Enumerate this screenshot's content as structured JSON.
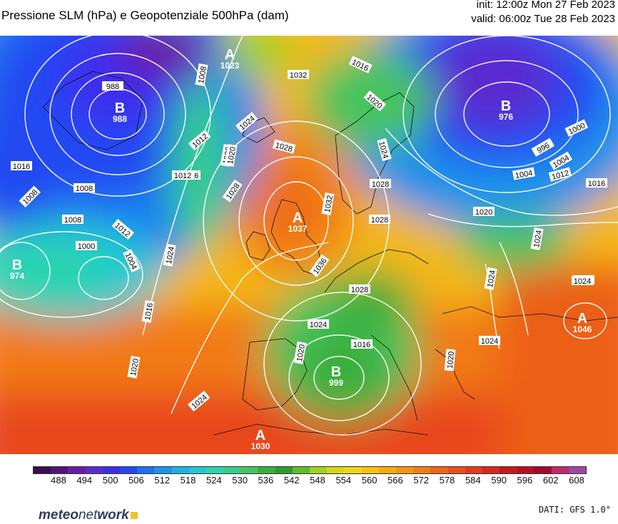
{
  "header": {
    "title": "Pressione SLM (hPa) e Geopotenziale 500hPa (dam)",
    "init": "init: 12:00z Mon 27 Feb 2023",
    "valid": "valid: 06:00z Tue 28 Feb 2023"
  },
  "isobar_labels": [
    "988",
    "1008",
    "1012",
    "1016",
    "1020",
    "1024",
    "1028",
    "1032",
    "1036",
    "1016",
    "1020",
    "1024",
    "1028",
    "1012",
    "1008",
    "1004",
    "1000",
    "996",
    "1004",
    "1012",
    "1016",
    "1020",
    "1024",
    "1028",
    "1024",
    "1024",
    "1032",
    "1016",
    "1008",
    "1012",
    "1008",
    "1000",
    "1004",
    "1016",
    "1020",
    "1024",
    "1028",
    "1024",
    "1020",
    "1016",
    "1020",
    "1024",
    "1024",
    "1024",
    "1020",
    "1028"
  ],
  "centers": [
    {
      "letter": "B",
      "value": "988"
    },
    {
      "letter": "A",
      "value": "1023"
    },
    {
      "letter": "B",
      "value": "976"
    },
    {
      "letter": "B",
      "value": "974"
    },
    {
      "letter": "A",
      "value": "1037"
    },
    {
      "letter": "B",
      "value": "999"
    },
    {
      "letter": "A",
      "value": "1030"
    },
    {
      "letter": "A",
      "value": "1046"
    }
  ],
  "colorbar": {
    "ticks": [
      "488",
      "494",
      "500",
      "506",
      "512",
      "518",
      "524",
      "530",
      "536",
      "542",
      "548",
      "554",
      "560",
      "566",
      "572",
      "578",
      "584",
      "590",
      "596",
      "602",
      "608"
    ],
    "colors": [
      "#3a0f4f",
      "#55127a",
      "#6a1aa6",
      "#5a2bd0",
      "#3a2ff0",
      "#2448f2",
      "#1f6ff0",
      "#1f92ea",
      "#1fb2e0",
      "#23c9cf",
      "#2ad4b0",
      "#35cf86",
      "#46c35e",
      "#3aae3a",
      "#2e9c2e",
      "#5fbd2a",
      "#9fd120",
      "#d6d618",
      "#f2d414",
      "#f7c10f",
      "#f8aa10",
      "#f59512",
      "#f17d14",
      "#ee6516",
      "#e94f18",
      "#e33a1a",
      "#d9291c",
      "#c8181e",
      "#b80f20",
      "#a20b2a",
      "#c02a6a",
      "#a046a8"
    ]
  },
  "footer": {
    "brand_main": "meteo",
    "brand_net": "net",
    "brand_work": "work",
    "source": "DATI: GFS 1.0°"
  }
}
